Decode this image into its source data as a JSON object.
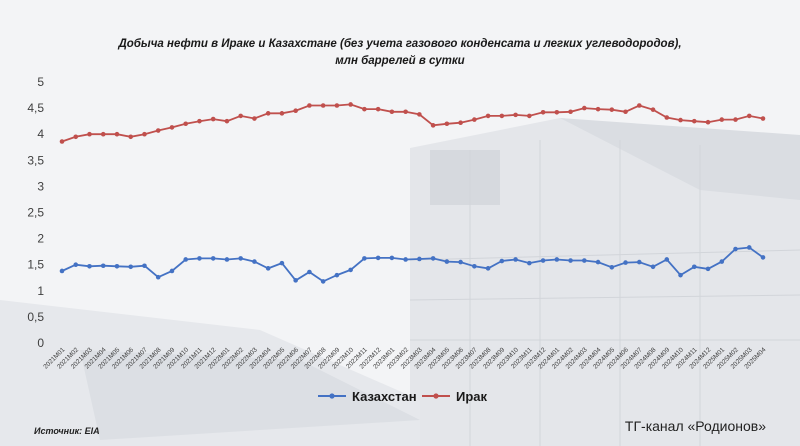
{
  "title_line1": "Добыча нефти в Ираке и Казахстане (без учета газового конденсата и легких углеводородов),",
  "title_line2": "млн баррелей в сутки",
  "source": "Источник: EIA",
  "channel": "ТГ-канал «Родионов»",
  "chart_data": {
    "type": "line",
    "title": "Добыча нефти в Ираке и Казахстане (без учета газового конденсата и легких углеводородов), млн баррелей в сутки",
    "ylim": [
      0,
      5
    ],
    "y_ticks": [
      "0",
      "0,5",
      "1",
      "1,5",
      "2",
      "2,5",
      "3",
      "3,5",
      "4",
      "4,5",
      "5"
    ],
    "y_tick_values": [
      0,
      0.5,
      1,
      1.5,
      2,
      2.5,
      3,
      3.5,
      4,
      4.5,
      5
    ],
    "grid": false,
    "legend_position": "bottom",
    "x": [
      "2021M01",
      "2021M02",
      "2021M03",
      "2021M04",
      "2021M05",
      "2021M06",
      "2021M07",
      "2021M08",
      "2021M09",
      "2021M10",
      "2021M11",
      "2021M12",
      "2022M01",
      "2022M02",
      "2022M03",
      "2022M04",
      "2022M05",
      "2022M06",
      "2022M07",
      "2022M08",
      "2022M09",
      "2022M10",
      "2022M11",
      "2022M12",
      "2023M01",
      "2023M02",
      "2023M03",
      "2023M04",
      "2023M05",
      "2023M06",
      "2023M07",
      "2023M08",
      "2023M09",
      "2023M10",
      "2023M11",
      "2023M12",
      "2024M01",
      "2024M02",
      "2024M03",
      "2024M04",
      "2024M05",
      "2024M06",
      "2024M07",
      "2024M08",
      "2024M09",
      "2024M10",
      "2024M11",
      "2024M12",
      "2025M01",
      "2025M02",
      "2025M03",
      "2025M04"
    ],
    "series": [
      {
        "name": "Казахстан",
        "color": "#4472c4",
        "values": [
          1.38,
          1.5,
          1.47,
          1.48,
          1.47,
          1.46,
          1.48,
          1.26,
          1.38,
          1.6,
          1.62,
          1.62,
          1.6,
          1.62,
          1.56,
          1.43,
          1.53,
          1.2,
          1.36,
          1.18,
          1.3,
          1.4,
          1.62,
          1.63,
          1.63,
          1.6,
          1.61,
          1.62,
          1.56,
          1.55,
          1.47,
          1.43,
          1.57,
          1.6,
          1.53,
          1.58,
          1.6,
          1.58,
          1.58,
          1.55,
          1.45,
          1.54,
          1.55,
          1.46,
          1.6,
          1.3,
          1.46,
          1.42,
          1.56,
          1.8,
          1.83,
          1.64
        ]
      },
      {
        "name": "Ирак",
        "color": "#c0504d",
        "values": [
          3.86,
          3.95,
          4.0,
          4.0,
          4.0,
          3.95,
          4.0,
          4.07,
          4.13,
          4.2,
          4.25,
          4.29,
          4.25,
          4.35,
          4.3,
          4.4,
          4.4,
          4.45,
          4.55,
          4.55,
          4.55,
          4.57,
          4.48,
          4.48,
          4.43,
          4.43,
          4.38,
          4.17,
          4.2,
          4.22,
          4.28,
          4.35,
          4.35,
          4.37,
          4.35,
          4.42,
          4.42,
          4.43,
          4.5,
          4.48,
          4.47,
          4.43,
          4.55,
          4.47,
          4.32,
          4.27,
          4.25,
          4.23,
          4.28,
          4.28,
          4.35,
          4.3
        ]
      }
    ]
  }
}
